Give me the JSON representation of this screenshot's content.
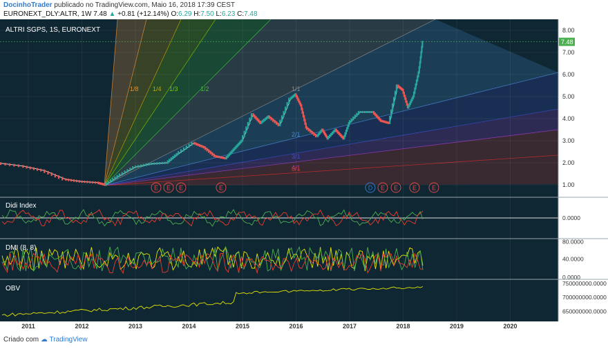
{
  "header": {
    "author": "DocinhoTrader",
    "published": "publicado no TradingView.com, Maio 16, 2018 17:39 CEST",
    "symbol_line": "EURONEXT_DLY:ALTR, 1W",
    "last": "7.48",
    "change": "+0.81 (+12.14%)",
    "o_label": "O:",
    "o": "6.29",
    "h_label": "H:",
    "h": "7.50",
    "l_label": "L:",
    "l": "6.23",
    "c_label": "C:",
    "c": "7.48"
  },
  "footer": {
    "created_with": "Criado com",
    "brand": "TradingView"
  },
  "colors": {
    "up": "#26a69a",
    "down": "#ef5350",
    "price_tag": "#4caf50",
    "chart_bg": "#0f2733"
  },
  "chart_data": [
    {
      "type": "candlestick",
      "title": "ALTRI SGPS, 1S, EURONEXT",
      "ylim": [
        0.5,
        8.5
      ],
      "y_ticks": [
        "8.00",
        "7.00",
        "6.00",
        "5.00",
        "4.00",
        "3.00",
        "2.00",
        "1.00"
      ],
      "x_ticks": [
        "2011",
        "2012",
        "2013",
        "2014",
        "2015",
        "2016",
        "2017",
        "2018",
        "2019",
        "2020"
      ],
      "last_price_label": "7.48",
      "price_path": [
        [
          2010.4,
          2.0
        ],
        [
          2010.9,
          1.85
        ],
        [
          2011.3,
          1.65
        ],
        [
          2011.7,
          1.25
        ],
        [
          2012.0,
          1.15
        ],
        [
          2012.3,
          1.1
        ],
        [
          2012.45,
          1.0
        ],
        [
          2012.7,
          1.4
        ],
        [
          2013.0,
          1.8
        ],
        [
          2013.3,
          1.95
        ],
        [
          2013.6,
          2.0
        ],
        [
          2013.8,
          2.4
        ],
        [
          2014.1,
          2.9
        ],
        [
          2014.3,
          2.7
        ],
        [
          2014.5,
          2.3
        ],
        [
          2014.7,
          2.2
        ],
        [
          2014.85,
          2.6
        ],
        [
          2015.0,
          3.0
        ],
        [
          2015.2,
          4.2
        ],
        [
          2015.35,
          3.8
        ],
        [
          2015.5,
          4.1
        ],
        [
          2015.7,
          3.7
        ],
        [
          2015.9,
          4.9
        ],
        [
          2016.0,
          5.1
        ],
        [
          2016.1,
          4.6
        ],
        [
          2016.2,
          3.6
        ],
        [
          2016.4,
          3.2
        ],
        [
          2016.5,
          3.5
        ],
        [
          2016.6,
          3.1
        ],
        [
          2016.75,
          3.5
        ],
        [
          2016.9,
          3.1
        ],
        [
          2017.0,
          3.8
        ],
        [
          2017.2,
          4.3
        ],
        [
          2017.45,
          4.3
        ],
        [
          2017.6,
          3.9
        ],
        [
          2017.75,
          3.8
        ],
        [
          2017.9,
          5.5
        ],
        [
          2018.0,
          5.3
        ],
        [
          2018.1,
          4.5
        ],
        [
          2018.2,
          5.0
        ],
        [
          2018.3,
          6.1
        ],
        [
          2018.37,
          7.48
        ]
      ],
      "gann_fan_labels": [
        "1/8",
        "1/4",
        "1/3",
        "1/2",
        "1/1",
        "2/1",
        "3/1",
        "4/1",
        "8/1"
      ],
      "gann_fan_colors": [
        "#e69138",
        "#c8a400",
        "#7ec800",
        "#3fbf3f",
        "#8a8a8a",
        "#4a8bd8",
        "#3a4fc8",
        "#9c3cc8",
        "#d0302a"
      ],
      "event_markers": [
        "E",
        "E",
        "E",
        "E",
        "D",
        "E",
        "E",
        "E",
        "E"
      ],
      "event_colors": {
        "E": "#e04848",
        "D": "#2e7bcf"
      }
    },
    {
      "type": "line",
      "title": "Didi Index",
      "y_ticks": [
        "0.0000"
      ],
      "series": [
        {
          "color": "#4caf50"
        },
        {
          "color": "#ef3b2c"
        }
      ]
    },
    {
      "type": "line",
      "title": "DMI (8, 8)",
      "y_ticks": [
        "80.0000",
        "40.0000",
        "0.0000"
      ],
      "series": [
        {
          "color": "#e6e600"
        },
        {
          "color": "#4caf50"
        },
        {
          "color": "#ef3b2c"
        }
      ]
    },
    {
      "type": "line",
      "title": "OBV",
      "y_ticks": [
        "750000000.0000",
        "700000000.0000",
        "650000000.0000"
      ],
      "series": [
        {
          "color": "#e6e600"
        }
      ]
    }
  ]
}
